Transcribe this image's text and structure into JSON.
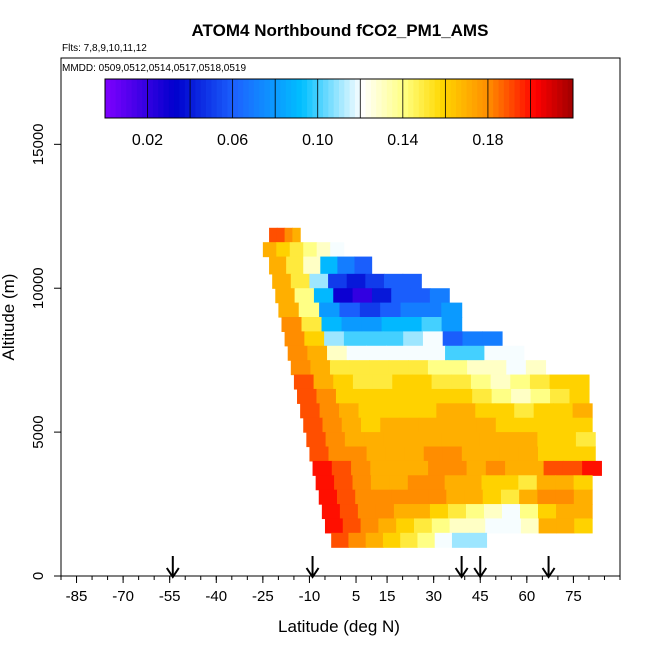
{
  "chart_data": {
    "type": "heatmap",
    "title": "ATOM4 Northbound fCO2_PM1_AMS",
    "subtitle_flights": "Flts: 7,8,9,10,11,12",
    "subtitle_dates": "MMDD: 0509,0512,0514,0517,0518,0519",
    "xlabel": "Latitude (deg N)",
    "ylabel": "Altitude (m)",
    "xlim": [
      -90,
      90
    ],
    "ylim": [
      0,
      18000
    ],
    "x_ticks": [
      -85,
      -70,
      -55,
      -40,
      -25,
      -10,
      5,
      15,
      30,
      45,
      60,
      75
    ],
    "x_tick_labels": [
      "-85",
      "-70",
      "-55",
      "-40",
      "-25",
      "-10",
      "5",
      "15",
      "30",
      "45",
      "60",
      "75"
    ],
    "y_ticks": [
      0,
      5000,
      10000,
      15000
    ],
    "y_tick_labels": [
      "0",
      "5000",
      "10000",
      "15000"
    ],
    "colorbar": {
      "vmin": 0.0,
      "vmax": 0.22,
      "labels": [
        "0.02",
        "0.06",
        "0.10",
        "0.14",
        "0.18"
      ],
      "label_values": [
        0.02,
        0.06,
        0.1,
        0.14,
        0.18
      ],
      "colors": [
        "#7f00ff",
        "#0000cd",
        "#1c64ff",
        "#00bfff",
        "#ffffff",
        "#ffff80",
        "#ffd700",
        "#ff8c00",
        "#ff0000",
        "#a00000"
      ],
      "color_positions": [
        0.0,
        0.15,
        0.28,
        0.42,
        0.55,
        0.64,
        0.72,
        0.82,
        0.92,
        1.0
      ]
    },
    "flight_arrows_lat": [
      -54,
      -9,
      39,
      45,
      67
    ],
    "profile_rows": [
      {
        "alt_bottom": 11600,
        "alt_top": 12100,
        "lat_start": -23,
        "lat_end": -13,
        "values": [
          0.19,
          0.19,
          0.18,
          0.17
        ]
      },
      {
        "alt_bottom": 11100,
        "alt_top": 11600,
        "lat_start": -25,
        "lat_end": 1,
        "values": [
          0.17,
          0.16,
          0.15,
          0.14,
          0.13,
          0.12
        ]
      },
      {
        "alt_bottom": 10500,
        "alt_top": 11100,
        "lat_start": -23,
        "lat_end": 10,
        "values": [
          0.17,
          0.15,
          0.13,
          0.09,
          0.07,
          0.06
        ]
      },
      {
        "alt_bottom": 10000,
        "alt_top": 10500,
        "lat_start": -22,
        "lat_end": 26,
        "values": [
          0.17,
          0.15,
          0.11,
          0.05,
          0.04,
          0.05,
          0.06,
          0.06
        ]
      },
      {
        "alt_bottom": 9500,
        "alt_top": 10000,
        "lat_start": -21,
        "lat_end": 35,
        "values": [
          0.17,
          0.14,
          0.09,
          0.03,
          0.02,
          0.04,
          0.06,
          0.06,
          0.07
        ]
      },
      {
        "alt_bottom": 9000,
        "alt_top": 9500,
        "lat_start": -20,
        "lat_end": 39,
        "values": [
          0.17,
          0.14,
          0.08,
          0.06,
          0.05,
          0.06,
          0.07,
          0.07,
          0.08
        ]
      },
      {
        "alt_bottom": 8500,
        "alt_top": 9000,
        "lat_start": -19,
        "lat_end": 39,
        "values": [
          0.18,
          0.15,
          0.09,
          0.08,
          0.08,
          0.09,
          0.09,
          0.1,
          0.08
        ]
      },
      {
        "alt_bottom": 8000,
        "alt_top": 8500,
        "lat_start": -18,
        "lat_end": 52,
        "values": [
          0.18,
          0.16,
          0.11,
          0.1,
          0.1,
          0.1,
          0.11,
          0.12,
          0.06,
          0.07,
          0.07
        ]
      },
      {
        "alt_bottom": 7500,
        "alt_top": 8000,
        "lat_start": -17,
        "lat_end": 59,
        "values": [
          0.18,
          0.17,
          0.13,
          0.12,
          0.12,
          0.12,
          0.12,
          0.12,
          0.1,
          0.1,
          0.12,
          0.12
        ]
      },
      {
        "alt_bottom": 7000,
        "alt_top": 7500,
        "lat_start": -16,
        "lat_end": 66,
        "values": [
          0.18,
          0.17,
          0.15,
          0.15,
          0.15,
          0.15,
          0.15,
          0.14,
          0.14,
          0.13,
          0.13,
          0.12,
          0.13
        ]
      },
      {
        "alt_bottom": 6500,
        "alt_top": 7000,
        "lat_start": -15,
        "lat_end": 80,
        "values": [
          0.19,
          0.17,
          0.16,
          0.15,
          0.15,
          0.16,
          0.16,
          0.15,
          0.15,
          0.14,
          0.13,
          0.14,
          0.15,
          0.16,
          0.16
        ]
      },
      {
        "alt_bottom": 6000,
        "alt_top": 6500,
        "lat_start": -14,
        "lat_end": 80,
        "values": [
          0.19,
          0.18,
          0.16,
          0.16,
          0.16,
          0.16,
          0.16,
          0.16,
          0.16,
          0.15,
          0.14,
          0.13,
          0.14,
          0.15,
          0.16
        ]
      },
      {
        "alt_bottom": 5500,
        "alt_top": 6000,
        "lat_start": -13,
        "lat_end": 81,
        "values": [
          0.19,
          0.18,
          0.17,
          0.16,
          0.16,
          0.16,
          0.16,
          0.17,
          0.17,
          0.16,
          0.16,
          0.15,
          0.16,
          0.16,
          0.17
        ]
      },
      {
        "alt_bottom": 5000,
        "alt_top": 5500,
        "lat_start": -12,
        "lat_end": 81,
        "values": [
          0.19,
          0.18,
          0.17,
          0.16,
          0.17,
          0.17,
          0.17,
          0.17,
          0.17,
          0.17,
          0.16,
          0.16,
          0.16,
          0.16,
          0.16
        ]
      },
      {
        "alt_bottom": 4500,
        "alt_top": 5000,
        "lat_start": -11,
        "lat_end": 82,
        "values": [
          0.19,
          0.18,
          0.17,
          0.17,
          0.17,
          0.17,
          0.17,
          0.17,
          0.17,
          0.17,
          0.17,
          0.17,
          0.16,
          0.16,
          0.15
        ]
      },
      {
        "alt_bottom": 4000,
        "alt_top": 4500,
        "lat_start": -10,
        "lat_end": 82,
        "values": [
          0.19,
          0.18,
          0.18,
          0.17,
          0.17,
          0.17,
          0.18,
          0.18,
          0.17,
          0.17,
          0.17,
          0.17,
          0.16,
          0.16,
          0.16
        ]
      },
      {
        "alt_bottom": 3500,
        "alt_top": 4000,
        "lat_start": -9,
        "lat_end": 84,
        "values": [
          0.2,
          0.19,
          0.18,
          0.17,
          0.17,
          0.17,
          0.18,
          0.18,
          0.17,
          0.18,
          0.17,
          0.17,
          0.19,
          0.19,
          0.2
        ]
      },
      {
        "alt_bottom": 3000,
        "alt_top": 3500,
        "lat_start": -8,
        "lat_end": 81,
        "values": [
          0.2,
          0.19,
          0.18,
          0.17,
          0.17,
          0.18,
          0.18,
          0.17,
          0.17,
          0.16,
          0.16,
          0.15,
          0.17,
          0.17,
          0.16
        ]
      },
      {
        "alt_bottom": 2500,
        "alt_top": 3000,
        "lat_start": -7,
        "lat_end": 81,
        "values": [
          0.2,
          0.19,
          0.18,
          0.18,
          0.18,
          0.18,
          0.18,
          0.17,
          0.17,
          0.16,
          0.15,
          0.17,
          0.18,
          0.18,
          0.17
        ]
      },
      {
        "alt_bottom": 2000,
        "alt_top": 2500,
        "lat_start": -6,
        "lat_end": 81,
        "values": [
          0.2,
          0.19,
          0.18,
          0.18,
          0.17,
          0.17,
          0.16,
          0.15,
          0.14,
          0.13,
          0.12,
          0.14,
          0.16,
          0.17,
          0.17
        ]
      },
      {
        "alt_bottom": 1500,
        "alt_top": 2000,
        "lat_start": -5,
        "lat_end": 81,
        "values": [
          0.2,
          0.19,
          0.18,
          0.17,
          0.16,
          0.15,
          0.14,
          0.13,
          0.13,
          0.12,
          0.12,
          0.13,
          0.17,
          0.17,
          0.16
        ]
      },
      {
        "alt_bottom": 1000,
        "alt_top": 1500,
        "lat_start": -3,
        "lat_end": 47,
        "values": [
          0.19,
          0.18,
          0.17,
          0.16,
          0.15,
          0.14,
          0.12,
          0.11,
          0.11
        ]
      }
    ]
  }
}
